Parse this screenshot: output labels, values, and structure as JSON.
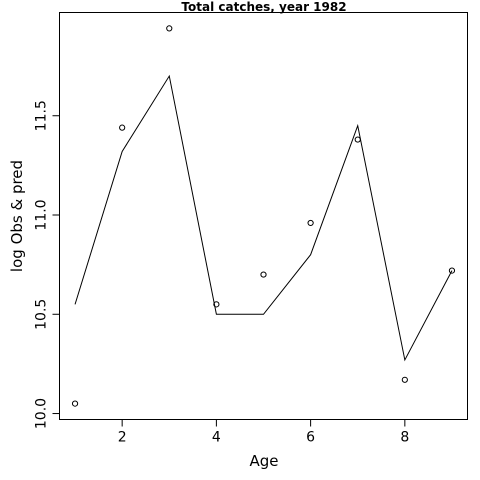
{
  "chart_data": {
    "type": "line",
    "title": "Total catches, year 1982",
    "xlabel": "Age",
    "ylabel": "log Obs & pred",
    "xlim": [
      0.67,
      9.33
    ],
    "ylim": [
      9.97,
      12.02
    ],
    "x_ticks": [
      2,
      4,
      6,
      8
    ],
    "x_tick_labels": [
      "2",
      "4",
      "6",
      "8"
    ],
    "y_ticks": [
      10.0,
      10.5,
      11.0,
      11.5
    ],
    "y_tick_labels": [
      "10.0",
      "10.5",
      "11.0",
      "11.5"
    ],
    "grid": false,
    "series": [
      {
        "style": "points",
        "marker": "open-circle",
        "x": [
          1,
          2,
          3,
          4,
          5,
          6,
          7,
          8,
          9
        ],
        "y": [
          10.05,
          11.44,
          11.94,
          10.55,
          10.7,
          10.96,
          11.38,
          10.17,
          10.72
        ]
      },
      {
        "style": "line",
        "x": [
          1,
          2,
          3,
          4,
          5,
          6,
          7,
          8,
          9
        ],
        "y": [
          10.55,
          11.32,
          11.7,
          10.5,
          10.5,
          10.8,
          11.45,
          10.27,
          10.72
        ]
      }
    ]
  }
}
